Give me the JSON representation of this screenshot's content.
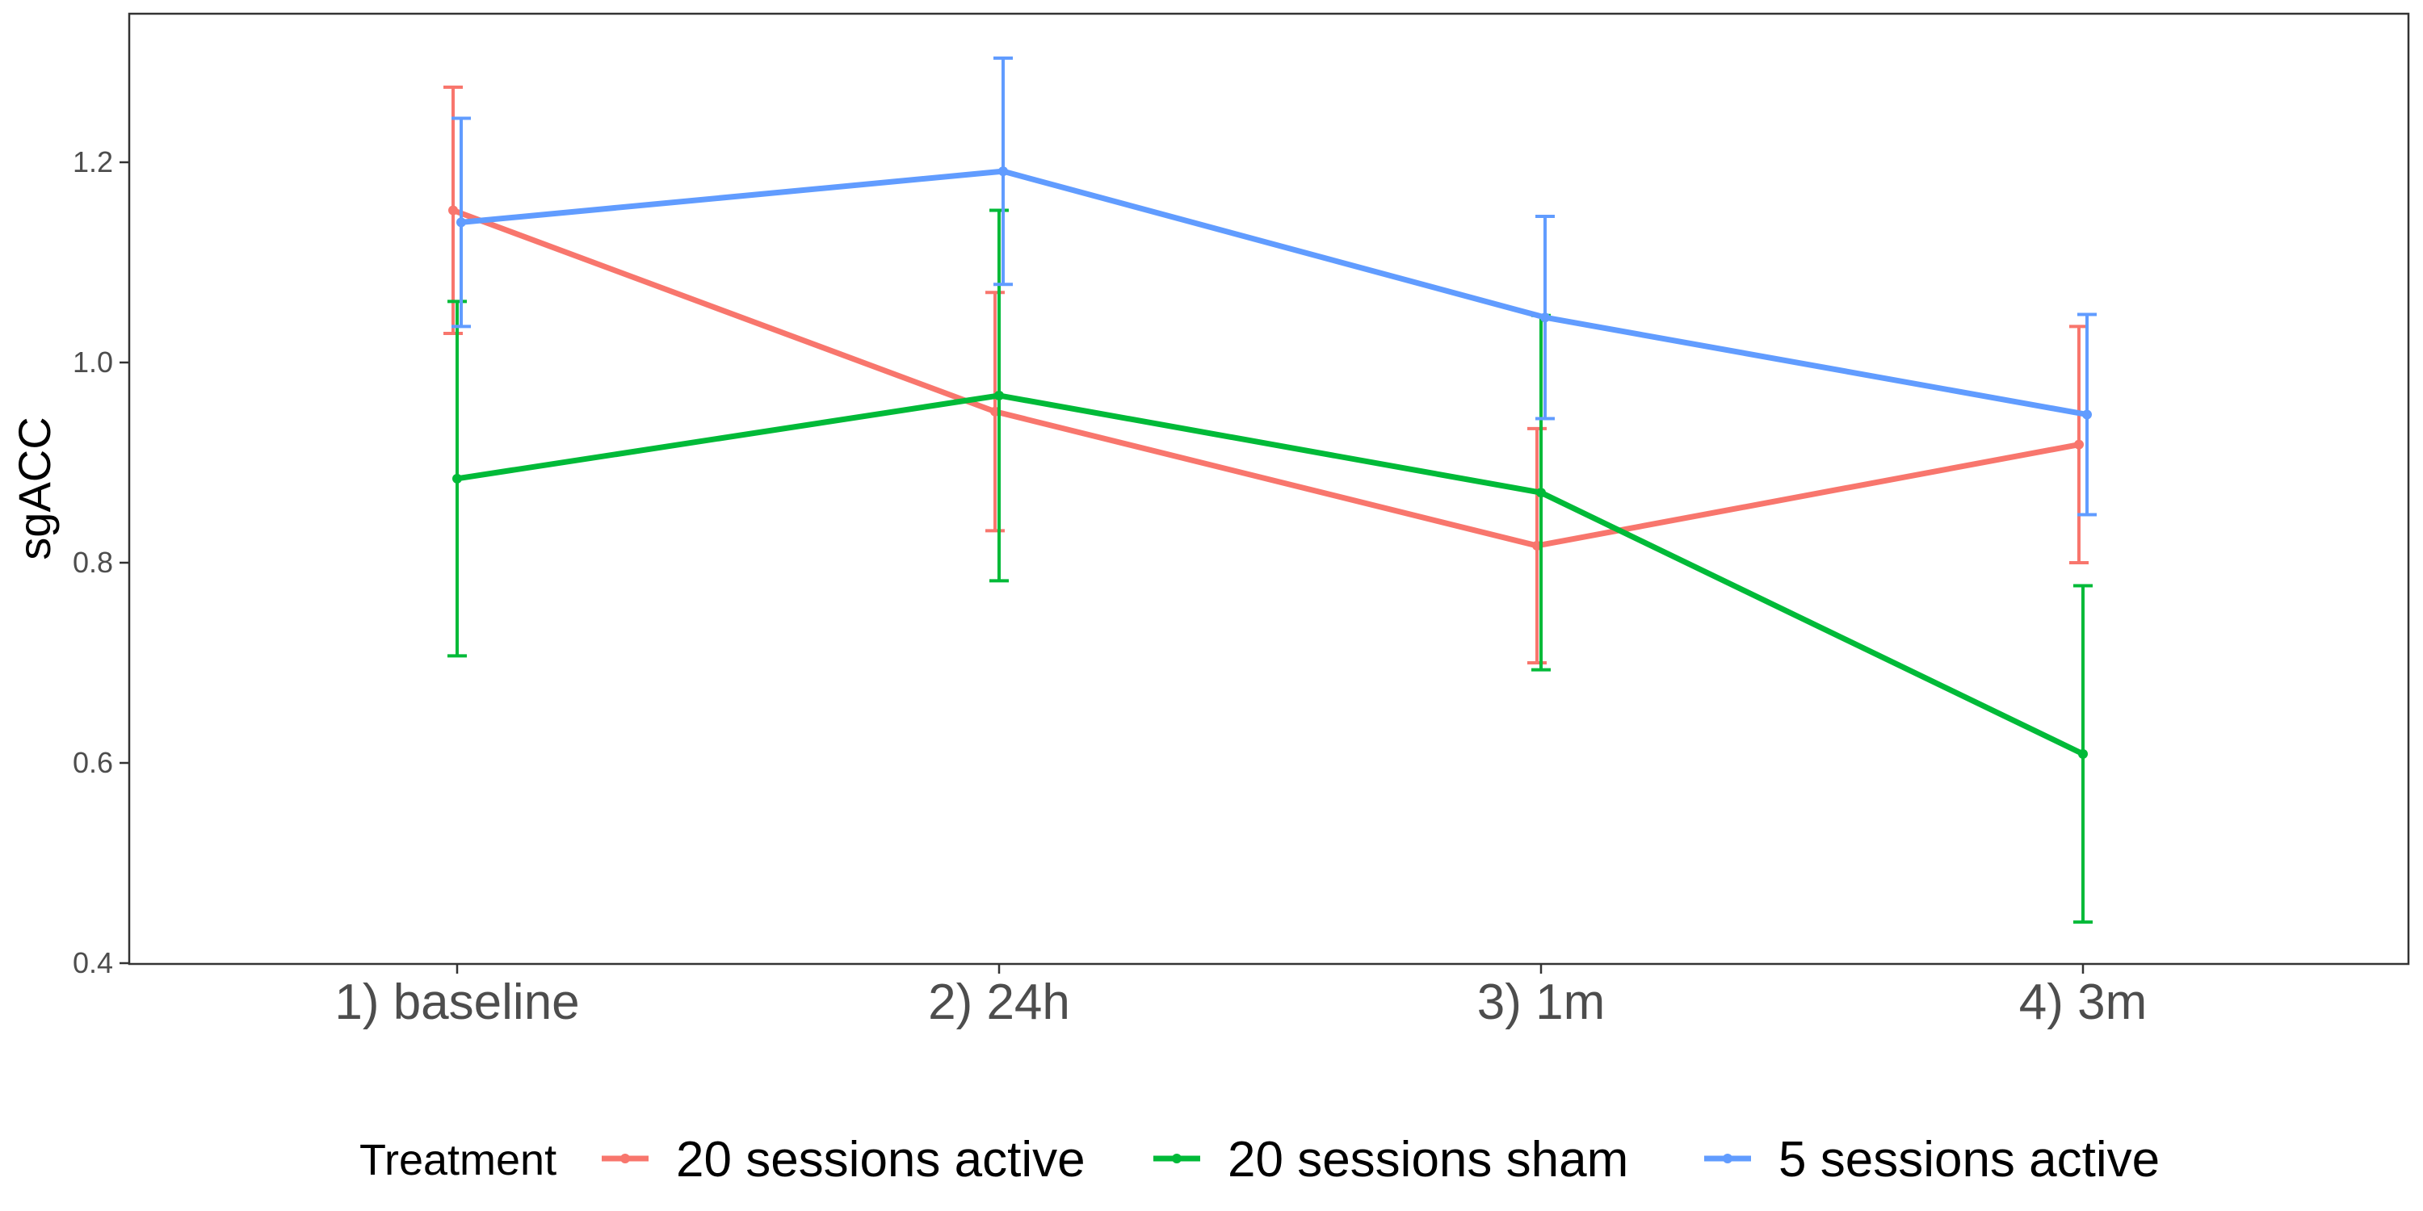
{
  "chart_data": {
    "type": "line",
    "title": "",
    "xlabel": "",
    "ylabel": "sgACC",
    "categories": [
      "1) baseline",
      "2) 24h",
      "3) 1m",
      "4) 3m"
    ],
    "ylim": [
      0.4,
      1.35
    ],
    "yticks": [
      0.4,
      0.6,
      0.8,
      1.0,
      1.2
    ],
    "ytick_labels": [
      "0.4",
      "0.6",
      "0.8",
      "1.0",
      "1.2"
    ],
    "grid": false,
    "legend": {
      "title": "Treatment",
      "position": "bottom"
    },
    "series": [
      {
        "name": "20 sessions active",
        "color": "#F8766D",
        "values": [
          1.152,
          0.951,
          0.817,
          0.918
        ],
        "ci_lower": [
          1.029,
          0.832,
          0.7,
          0.8
        ],
        "ci_upper": [
          1.275,
          1.07,
          0.934,
          1.036
        ]
      },
      {
        "name": "20 sessions sham",
        "color": "#00BA38",
        "values": [
          0.884,
          0.967,
          0.87,
          0.609
        ],
        "ci_lower": [
          0.707,
          0.782,
          0.693,
          0.441
        ],
        "ci_upper": [
          1.061,
          1.152,
          1.047,
          0.777
        ]
      },
      {
        "name": "5 sessions active",
        "color": "#619CFF",
        "values": [
          1.14,
          1.191,
          1.045,
          0.948
        ],
        "ci_lower": [
          1.036,
          1.078,
          0.944,
          0.848
        ],
        "ci_upper": [
          1.244,
          1.304,
          1.146,
          1.048
        ]
      }
    ]
  }
}
